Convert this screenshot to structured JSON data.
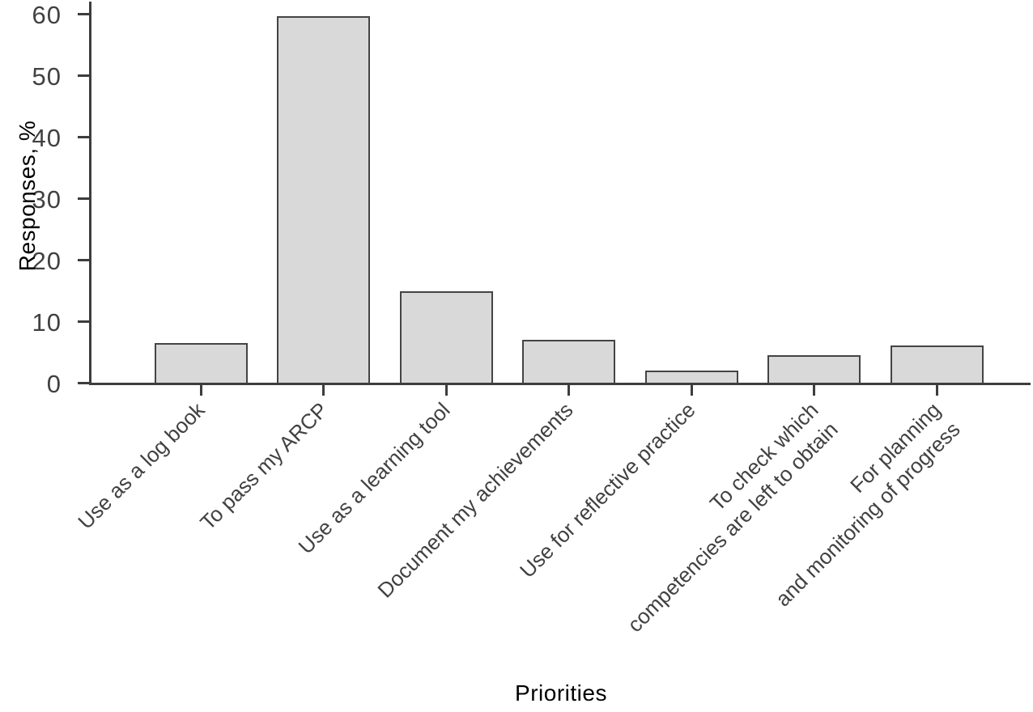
{
  "chart_data": {
    "type": "bar",
    "title": "",
    "xlabel": "Priorities",
    "ylabel": "Responses, %",
    "categories": [
      "Use as a log book",
      "To pass my ARCP",
      "Use as a learning tool",
      "Document my achievements",
      "Use for reflective practice",
      "To check which\ncompetencies are left to obtain",
      "For planning\nand monitoring of progress"
    ],
    "values": [
      6.5,
      59.5,
      14.8,
      7,
      2,
      4.5,
      6
    ],
    "ylim": [
      0,
      60
    ],
    "yticks": [
      0,
      10,
      20,
      30,
      40,
      50,
      60
    ],
    "grid": false,
    "legend": "none",
    "tick_label_rotation_deg": 45,
    "colors": {
      "bar_fill": "#d9d9d9",
      "bar_border": "#444444",
      "axis": "#3d3d3d",
      "text": "#414141"
    }
  }
}
